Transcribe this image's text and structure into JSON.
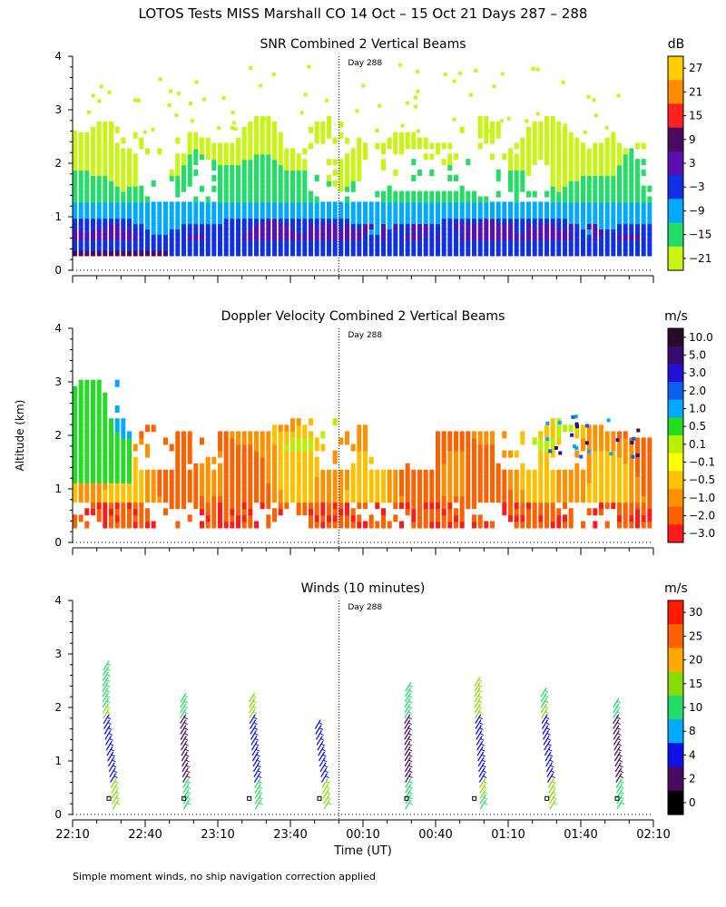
{
  "figure": {
    "title": "LOTOS Tests MISS Marshall CO  14 Oct – 15 Oct 21 Days 287 – 288",
    "ylabel": "Altitude (km)",
    "xlabel": "Time (UT)",
    "footnote": "Simple moment winds, no ship navigation correction applied",
    "day_marker": "Day 288"
  },
  "chart_data": [
    {
      "type": "heatmap",
      "title": "SNR Combined 2 Vertical Beams",
      "units": "dB",
      "x_range_minutes": [
        0,
        240
      ],
      "x_ticks": [
        "22:10",
        "22:40",
        "23:10",
        "23:40",
        "00:10",
        "00:40",
        "01:10",
        "01:40",
        "02:10"
      ],
      "ylim": [
        0,
        4
      ],
      "y_ticks": [
        "0",
        "1",
        "2",
        "3",
        "4"
      ],
      "day_boundary_minutes": 110,
      "colorbar": {
        "labels": [
          "27",
          "21",
          "15",
          "9",
          "3",
          "−3",
          "−9",
          "−15",
          "−21"
        ],
        "colors": [
          "#ffcc00",
          "#ff8c00",
          "#ff2020",
          "#4b0a5e",
          "#5a0fb0",
          "#1030e8",
          "#00aaff",
          "#22dd66",
          "#c8f514"
        ]
      },
      "profile_hint": "strongest echo 0.3-0.9 km, decreasing to edge of coverage near 2.7 km"
    },
    {
      "type": "heatmap",
      "title": "Doppler Velocity Combined 2 Vertical Beams",
      "units": "m/s",
      "x_range_minutes": [
        0,
        240
      ],
      "ylim": [
        0,
        4
      ],
      "y_ticks": [
        "0",
        "1",
        "2",
        "3",
        "4"
      ],
      "day_boundary_minutes": 110,
      "colorbar": {
        "labels": [
          "10.0",
          "5.0",
          "3.0",
          "2.0",
          "1.0",
          "0.5",
          "0.1",
          "−0.1",
          "−0.5",
          "−1.0",
          "−2.0",
          "−3.0"
        ],
        "colors": [
          "#2a0a28",
          "#3b0a6e",
          "#2210d8",
          "#0a5ff0",
          "#00aaff",
          "#22dd22",
          "#b8f000",
          "#ffff00",
          "#ffc000",
          "#ff9000",
          "#ff6000",
          "#ff1a1a"
        ]
      },
      "profile_hint": "mostly -0.1 to -1.0 m/s below 1.5 km, scattered positive values aloft"
    },
    {
      "type": "scatter",
      "title": "Winds (10 minutes)",
      "units": "m/s",
      "x_range_minutes": [
        0,
        240
      ],
      "ylim": [
        0,
        4
      ],
      "y_ticks": [
        "0",
        "1",
        "2",
        "3",
        "4"
      ],
      "day_boundary_minutes": 110,
      "colorbar": {
        "labels": [
          "30",
          "25",
          "20",
          "15",
          "10",
          "8",
          "4",
          "2",
          "0"
        ],
        "colors": [
          "#ff1a00",
          "#ff6000",
          "#ffaa00",
          "#88dd00",
          "#22dd66",
          "#00aaff",
          "#1010e8",
          "#4b0a5e",
          "#000000"
        ]
      },
      "profile_times_minutes": [
        15,
        46,
        73,
        102,
        138,
        166,
        196,
        225
      ],
      "profile_tops_km": [
        2.8,
        2.2,
        2.2,
        1.7,
        2.4,
        2.5,
        2.3,
        2.1
      ]
    }
  ]
}
